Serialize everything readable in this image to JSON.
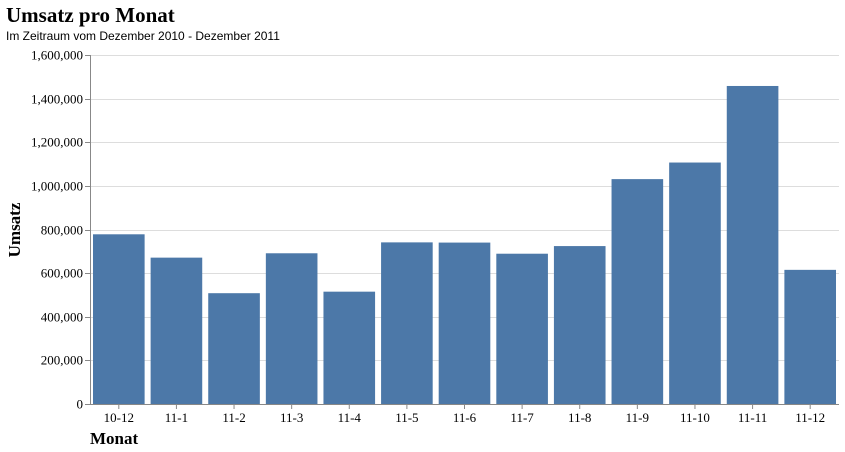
{
  "header": {
    "title": "Umsatz pro Monat",
    "subtitle": "Im Zeitraum vom Dezember 2010 - Dezember 2011"
  },
  "colors": {
    "bar": "#4c78a8",
    "grid": "#dddddd",
    "axis": "#888888"
  },
  "chart_data": {
    "type": "bar",
    "title": "Umsatz pro Monat",
    "subtitle": "Im Zeitraum vom Dezember 2010 - Dezember 2011",
    "xlabel": "Monat",
    "ylabel": "Umsatz",
    "categories": [
      "10-12",
      "11-1",
      "11-2",
      "11-3",
      "11-4",
      "11-5",
      "11-6",
      "11-7",
      "11-8",
      "11-9",
      "11-10",
      "11-11",
      "11-12"
    ],
    "values": [
      778000,
      671000,
      508000,
      691000,
      515000,
      741000,
      740000,
      689000,
      724000,
      1031000,
      1107000,
      1458000,
      615000
    ],
    "ylim": [
      0,
      1600000
    ],
    "yticks": [
      0,
      200000,
      400000,
      600000,
      800000,
      1000000,
      1200000,
      1400000,
      1600000
    ],
    "ytick_labels": [
      "0",
      "200,000",
      "400,000",
      "600,000",
      "800,000",
      "1,000,000",
      "1,200,000",
      "1,400,000",
      "1,600,000"
    ],
    "grid": true,
    "legend": "none"
  }
}
